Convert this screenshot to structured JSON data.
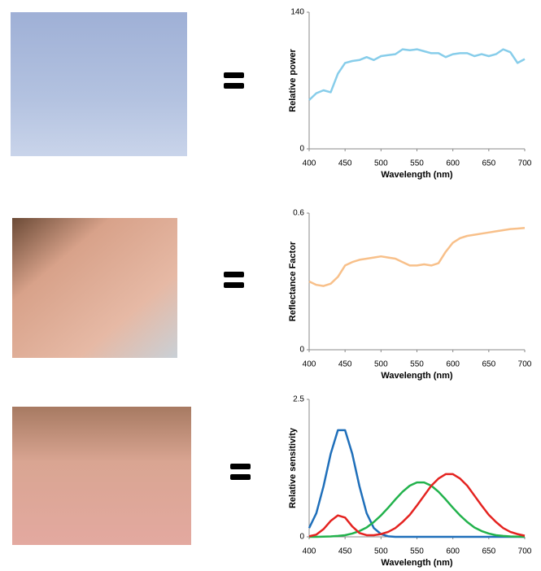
{
  "chart_data": [
    {
      "type": "line",
      "ylabel": "Relative power",
      "xlabel": "Wavelength (nm)",
      "x": [
        400,
        410,
        420,
        430,
        440,
        450,
        460,
        470,
        480,
        490,
        500,
        510,
        520,
        530,
        540,
        550,
        560,
        570,
        580,
        590,
        600,
        610,
        620,
        630,
        640,
        650,
        660,
        670,
        680,
        690,
        700
      ],
      "values": [
        50,
        57,
        60,
        58,
        77,
        88,
        90,
        91,
        94,
        91,
        95,
        96,
        97,
        102,
        101,
        102,
        100,
        98,
        98,
        94,
        97,
        98,
        98,
        95,
        97,
        95,
        97,
        102,
        99,
        88,
        92
      ],
      "color": "#87cdea",
      "xlim": [
        400,
        700
      ],
      "ylim": [
        0,
        140
      ],
      "xticks": [
        400,
        450,
        500,
        550,
        600,
        650,
        700
      ],
      "yticks": [
        0,
        140
      ]
    },
    {
      "type": "line",
      "ylabel": "Reflectance Factor",
      "xlabel": "Wavelength (nm)",
      "x": [
        400,
        410,
        420,
        430,
        440,
        450,
        460,
        470,
        480,
        490,
        500,
        510,
        520,
        530,
        540,
        550,
        560,
        570,
        580,
        590,
        600,
        610,
        620,
        630,
        640,
        650,
        660,
        670,
        680,
        690,
        700
      ],
      "values": [
        0.3,
        0.285,
        0.28,
        0.29,
        0.32,
        0.37,
        0.385,
        0.395,
        0.4,
        0.405,
        0.41,
        0.405,
        0.4,
        0.385,
        0.37,
        0.37,
        0.375,
        0.37,
        0.38,
        0.43,
        0.47,
        0.49,
        0.5,
        0.505,
        0.51,
        0.515,
        0.52,
        0.525,
        0.53,
        0.532,
        0.535
      ],
      "color": "#f8c08a",
      "xlim": [
        400,
        700
      ],
      "ylim": [
        0,
        0.6
      ],
      "xticks": [
        400,
        450,
        500,
        550,
        600,
        650,
        700
      ],
      "yticks": [
        0,
        0.6
      ]
    },
    {
      "type": "line",
      "ylabel": "Relative sensitivity",
      "xlabel": "Wavelength (nm)",
      "x": [
        400,
        410,
        420,
        430,
        440,
        450,
        460,
        470,
        480,
        490,
        500,
        510,
        520,
        530,
        540,
        550,
        560,
        570,
        580,
        590,
        600,
        610,
        620,
        630,
        640,
        650,
        660,
        670,
        680,
        690,
        700
      ],
      "series": [
        {
          "color": "#1f6fba",
          "values": [
            0.16,
            0.43,
            0.92,
            1.51,
            1.94,
            1.94,
            1.51,
            0.92,
            0.43,
            0.16,
            0.05,
            0.01,
            0,
            0,
            0,
            0,
            0,
            0,
            0,
            0,
            0,
            0,
            0,
            0,
            0,
            0,
            0,
            0,
            0,
            0,
            0
          ]
        },
        {
          "color": "#22b24c",
          "values": [
            0,
            0,
            0.003,
            0.008,
            0.016,
            0.03,
            0.06,
            0.105,
            0.17,
            0.27,
            0.39,
            0.53,
            0.68,
            0.82,
            0.93,
            0.99,
            0.99,
            0.93,
            0.82,
            0.68,
            0.53,
            0.39,
            0.27,
            0.17,
            0.105,
            0.06,
            0.03,
            0.016,
            0.008,
            0.003,
            0
          ]
        },
        {
          "color": "#e42320",
          "values": [
            0.01,
            0.04,
            0.14,
            0.29,
            0.39,
            0.35,
            0.19,
            0.07,
            0.03,
            0.03,
            0.05,
            0.09,
            0.16,
            0.27,
            0.4,
            0.57,
            0.75,
            0.93,
            1.06,
            1.14,
            1.14,
            1.06,
            0.93,
            0.75,
            0.57,
            0.4,
            0.27,
            0.16,
            0.09,
            0.05,
            0.02
          ]
        }
      ],
      "xlim": [
        400,
        700
      ],
      "ylim": [
        0,
        2.5
      ],
      "xticks": [
        400,
        450,
        500,
        550,
        600,
        650,
        700
      ],
      "yticks": [
        0,
        2.5
      ]
    }
  ]
}
